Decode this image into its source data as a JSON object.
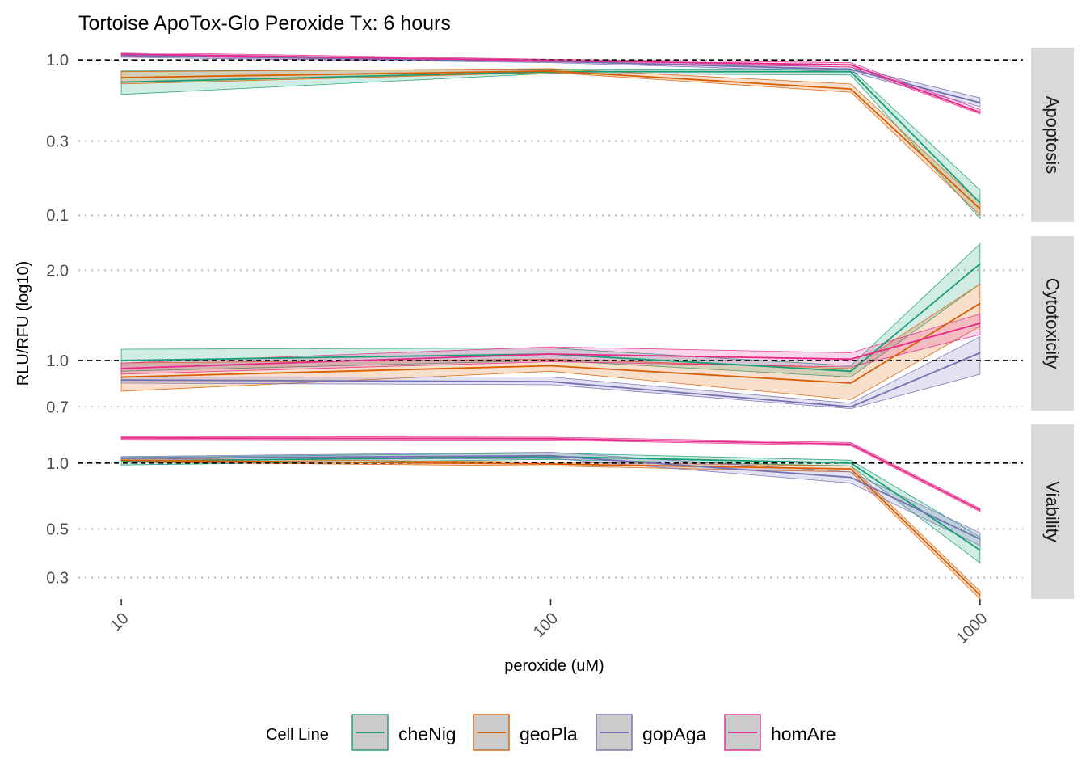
{
  "chart_data": {
    "type": "line",
    "title": "Tortoise ApoTox-Glo Peroxide Tx: 6 hours",
    "xlabel": "peroxide (uM)",
    "ylabel": "RLU/RFU (log10)",
    "x_scale": "log10",
    "y_scale": "log10",
    "x": [
      10,
      100,
      500,
      1000
    ],
    "x_ticks": [
      "10",
      "100",
      "1000"
    ],
    "x_tick_values": [
      10,
      100,
      1000
    ],
    "reference_line": 1.0,
    "legend": {
      "title": "Cell Line",
      "position": "bottom",
      "entries": [
        "cheNig",
        "geoPla",
        "gopAga",
        "homAre"
      ]
    },
    "colors": {
      "cheNig": "#1b9e77",
      "geoPla": "#d95f02",
      "gopAga": "#7570b3",
      "homAre": "#e7298a"
    },
    "panels": [
      {
        "strip": "Apoptosis",
        "ylim": [
          0.09,
          1.2
        ],
        "y_ticks": [
          "1.0",
          "0.3",
          "0.1"
        ],
        "y_tick_values": [
          1.0,
          0.3,
          0.1
        ],
        "series": [
          {
            "name": "cheNig",
            "values": [
              0.72,
              0.84,
              0.84,
              0.12
            ],
            "lower": [
              0.6,
              0.82,
              0.8,
              0.095
            ],
            "upper": [
              0.85,
              0.87,
              0.88,
              0.145
            ]
          },
          {
            "name": "geoPla",
            "values": [
              0.77,
              0.85,
              0.65,
              0.11
            ],
            "lower": [
              0.7,
              0.83,
              0.62,
              0.1
            ],
            "upper": [
              0.84,
              0.88,
              0.7,
              0.12
            ]
          },
          {
            "name": "gopAga",
            "values": [
              1.07,
              0.98,
              0.87,
              0.53
            ],
            "lower": [
              1.04,
              0.96,
              0.84,
              0.5
            ],
            "upper": [
              1.1,
              1.0,
              0.9,
              0.57
            ]
          },
          {
            "name": "homAre",
            "values": [
              1.09,
              0.99,
              0.93,
              0.46
            ],
            "lower": [
              1.06,
              0.97,
              0.9,
              0.45
            ],
            "upper": [
              1.12,
              1.01,
              0.96,
              0.48
            ]
          }
        ]
      },
      {
        "strip": "Cytotoxicity",
        "ylim": [
          0.68,
          2.6
        ],
        "y_ticks": [
          "2.0",
          "1.0",
          "0.7"
        ],
        "y_tick_values": [
          2.0,
          1.0,
          0.7
        ],
        "series": [
          {
            "name": "cheNig",
            "values": [
              1.0,
              1.05,
              0.92,
              2.1
            ],
            "lower": [
              0.92,
              1.0,
              0.88,
              1.8
            ],
            "upper": [
              1.09,
              1.1,
              0.96,
              2.45
            ]
          },
          {
            "name": "geoPla",
            "values": [
              0.88,
              0.96,
              0.84,
              1.55
            ],
            "lower": [
              0.79,
              0.92,
              0.74,
              1.3
            ],
            "upper": [
              0.98,
              1.01,
              0.94,
              1.8
            ]
          },
          {
            "name": "gopAga",
            "values": [
              0.86,
              0.85,
              0.7,
              1.06
            ],
            "lower": [
              0.84,
              0.83,
              0.69,
              0.9
            ],
            "upper": [
              0.88,
              0.88,
              0.72,
              1.2
            ]
          },
          {
            "name": "homAre",
            "values": [
              0.94,
              1.05,
              1.01,
              1.33
            ],
            "lower": [
              0.9,
              0.99,
              0.95,
              1.22
            ],
            "upper": [
              0.98,
              1.11,
              1.06,
              1.43
            ]
          }
        ]
      },
      {
        "strip": "Viability",
        "ylim": [
          0.24,
          1.5
        ],
        "y_ticks": [
          "1.0",
          "0.5",
          "0.3"
        ],
        "y_tick_values": [
          1.0,
          0.5,
          0.3
        ],
        "series": [
          {
            "name": "cheNig",
            "values": [
              1.02,
              1.07,
              1.0,
              0.4
            ],
            "lower": [
              0.98,
              1.04,
              0.97,
              0.35
            ],
            "upper": [
              1.06,
              1.11,
              1.03,
              0.46
            ]
          },
          {
            "name": "geoPla",
            "values": [
              1.03,
              0.99,
              0.94,
              0.25
            ],
            "lower": [
              1.01,
              0.97,
              0.91,
              0.24
            ],
            "upper": [
              1.05,
              1.01,
              0.97,
              0.26
            ]
          },
          {
            "name": "gopAga",
            "values": [
              1.05,
              1.08,
              0.86,
              0.45
            ],
            "lower": [
              1.03,
              1.05,
              0.81,
              0.42
            ],
            "upper": [
              1.07,
              1.12,
              0.91,
              0.48
            ]
          },
          {
            "name": "homAre",
            "values": [
              1.3,
              1.29,
              1.22,
              0.61
            ],
            "lower": [
              1.28,
              1.27,
              1.2,
              0.6
            ],
            "upper": [
              1.32,
              1.31,
              1.24,
              0.62
            ]
          }
        ]
      }
    ]
  }
}
